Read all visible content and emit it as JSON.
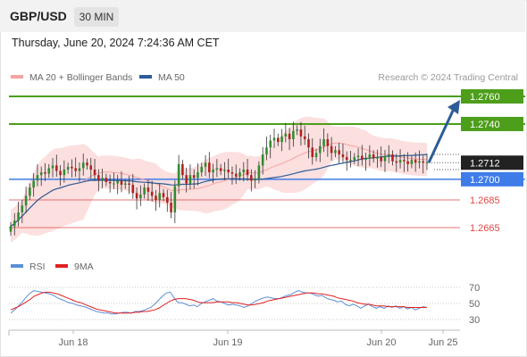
{
  "header": {
    "symbol": "GBP/USD",
    "timeframe": "30 MIN"
  },
  "datetime": "Thursday, June 20, 2024 7:24:36 AM CET",
  "copyright": "Research © 2024 Trading Central",
  "colors": {
    "bollinger": "#f6a3a3",
    "ma50": "#2d5c97",
    "resistance": "#4d9e1b",
    "support": "#3f7ce8",
    "pivot_red": "#e04545",
    "arrow": "#2d5c97",
    "candle_up": "#2f8d2f",
    "candle_down": "#b32020",
    "rsi": "#5b8fd8",
    "rsi_ma": "#e02020",
    "price_tag": "#222222"
  },
  "chart_data": [
    {
      "type": "candlestick",
      "legend": [
        {
          "name": "MA 20 + Bollinger Bands",
          "color": "#f6a3a3"
        },
        {
          "name": "MA 50",
          "color": "#2d5c97"
        }
      ],
      "legend_position": "top-left",
      "x_ticks": [
        "Jun 18",
        "Jun 19",
        "Jun 20",
        "Jun 25"
      ],
      "ylim": [
        1.2655,
        1.2775
      ],
      "levels": [
        {
          "value": 1.276,
          "label": "1.2760",
          "kind": "resistance"
        },
        {
          "value": 1.274,
          "label": "1.2740",
          "kind": "resistance"
        },
        {
          "value": 1.2712,
          "label": "1.2712",
          "kind": "current"
        },
        {
          "value": 1.27,
          "label": "1.2700",
          "kind": "support"
        },
        {
          "value": 1.2685,
          "label": "1.2685",
          "kind": "support-minor"
        },
        {
          "value": 1.2665,
          "label": "1.2665",
          "kind": "support-minor"
        }
      ],
      "forecast_target": 1.276,
      "closes": [
        1.2666,
        1.267,
        1.2676,
        1.2681,
        1.2688,
        1.2694,
        1.2699,
        1.2703,
        1.2705,
        1.2704,
        1.2708,
        1.271,
        1.2706,
        1.2703,
        1.2707,
        1.2709,
        1.2708,
        1.2706,
        1.2708,
        1.2712,
        1.271,
        1.2707,
        1.2703,
        1.2699,
        1.2701,
        1.2698,
        1.2697,
        1.2697,
        1.2699,
        1.2696,
        1.2697,
        1.2696,
        1.269,
        1.2686,
        1.2689,
        1.2694,
        1.2691,
        1.2688,
        1.2685,
        1.269,
        1.2687,
        1.2683,
        1.2676,
        1.2695,
        1.2711,
        1.2703,
        1.2697,
        1.2703,
        1.2701,
        1.2705,
        1.2709,
        1.2712,
        1.2705,
        1.2707,
        1.2708,
        1.2706,
        1.2707,
        1.2705,
        1.2704,
        1.2702,
        1.2705,
        1.2707,
        1.2703,
        1.2699,
        1.27,
        1.271,
        1.2718,
        1.2723,
        1.2728,
        1.273,
        1.2727,
        1.2731,
        1.2733,
        1.2729,
        1.2735,
        1.2736,
        1.2731,
        1.2729,
        1.2723,
        1.2716,
        1.2719,
        1.2724,
        1.2729,
        1.2724,
        1.2719,
        1.2721,
        1.2718,
        1.2716,
        1.2714,
        1.2714,
        1.2716,
        1.2717,
        1.2714,
        1.2715,
        1.2718,
        1.2715,
        1.2716,
        1.2713,
        1.2717,
        1.2718,
        1.2713,
        1.2712,
        1.2714,
        1.2713,
        1.2711,
        1.2714,
        1.2712,
        1.2713,
        1.2712,
        1.2712
      ]
    },
    {
      "type": "line",
      "legend": [
        {
          "name": "RSI",
          "color": "#5b8fd8"
        },
        {
          "name": "9MA",
          "color": "#e02020"
        }
      ],
      "y_ticks": [
        70,
        50,
        30
      ],
      "ylim": [
        25,
        75
      ],
      "rsi": [
        38,
        42,
        47,
        52,
        58,
        63,
        66,
        65,
        64,
        63,
        62,
        60,
        57,
        55,
        53,
        51,
        50,
        48,
        47,
        46,
        44,
        42,
        40,
        39,
        38,
        38,
        37,
        37,
        38,
        39,
        39,
        38,
        40,
        40,
        41,
        43,
        45,
        49,
        54,
        59,
        63,
        64,
        57,
        51,
        51,
        49,
        47,
        48,
        46,
        50,
        52,
        54,
        56,
        53,
        52,
        50,
        48,
        49,
        48,
        47,
        45,
        47,
        50,
        53,
        55,
        57,
        58,
        57,
        56,
        56,
        58,
        60,
        61,
        64,
        66,
        64,
        63,
        63,
        61,
        59,
        60,
        57,
        55,
        54,
        52,
        53,
        49,
        47,
        49,
        47,
        44,
        47,
        49,
        46,
        44,
        46,
        44,
        47,
        45,
        47,
        44,
        46,
        43,
        45,
        42,
        44,
        46,
        45
      ],
      "rsi_ma": [
        42,
        44,
        46,
        49,
        52,
        55,
        59,
        61,
        63,
        64,
        64,
        63,
        62,
        60,
        58,
        56,
        54,
        52,
        51,
        49,
        47,
        45,
        43,
        42,
        41,
        40,
        39,
        38,
        38,
        38,
        38,
        38,
        39,
        39,
        40,
        40,
        41,
        42,
        44,
        47,
        50,
        53,
        55,
        56,
        56,
        56,
        55,
        54,
        52,
        51,
        51,
        51,
        51,
        52,
        52,
        52,
        52,
        51,
        51,
        50,
        49,
        48,
        48,
        49,
        50,
        51,
        53,
        54,
        55,
        56,
        57,
        58,
        59,
        60,
        61,
        62,
        63,
        63,
        63,
        62,
        62,
        61,
        60,
        59,
        57,
        56,
        55,
        54,
        53,
        51,
        50,
        49,
        49,
        48,
        47,
        47,
        47,
        46,
        46,
        46,
        46,
        46,
        45,
        45,
        45,
        45,
        45,
        45
      ]
    }
  ]
}
